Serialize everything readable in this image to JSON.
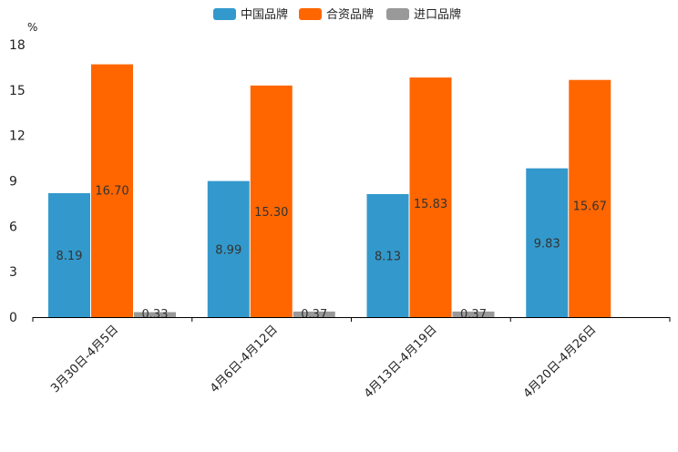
{
  "chart_data": {
    "type": "bar",
    "unit": "%",
    "categories": [
      "3月30日-4月5日",
      "4月6日-4月12日",
      "4月13日-4月19日",
      "4月20日-4月26日"
    ],
    "series": [
      {
        "name": "中国品牌",
        "color": "#3399cc",
        "values": [
          8.19,
          8.99,
          8.13,
          9.83
        ],
        "labels": [
          "8.19",
          "8.99",
          "8.13",
          "9.83"
        ]
      },
      {
        "name": "合资品牌",
        "color": "#ff6600",
        "values": [
          16.7,
          15.3,
          15.83,
          15.67
        ],
        "labels": [
          "16.70",
          "15.30",
          "15.83",
          "15.67"
        ]
      },
      {
        "name": "进口品牌",
        "color": "#999999",
        "values": [
          0.33,
          0.37,
          0.37,
          null
        ],
        "labels": [
          "0.33",
          "0.37",
          "0.37",
          null
        ]
      }
    ],
    "ylim": [
      0,
      18
    ],
    "yticks": [
      "0",
      "3",
      "6",
      "9",
      "12",
      "15",
      "18"
    ],
    "legend_position": "top-center"
  }
}
